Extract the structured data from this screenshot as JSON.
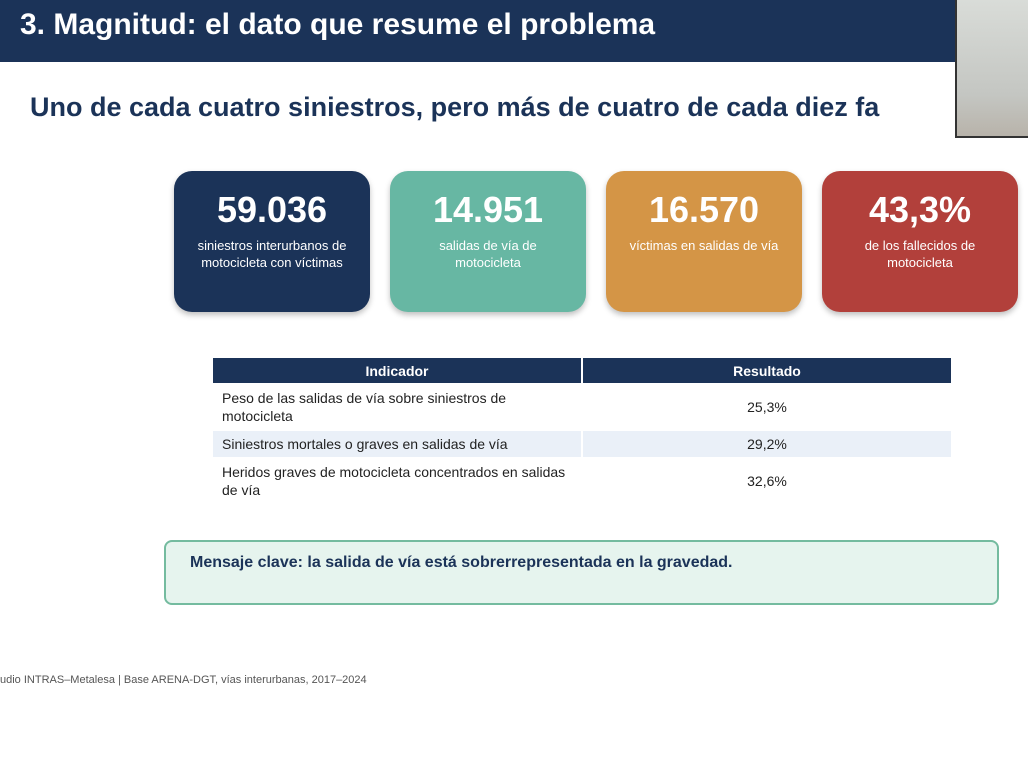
{
  "header": {
    "title": "3. Magnitud: el dato que resume el problema"
  },
  "subtitle": "Uno de cada cuatro siniestros, pero más de cuatro de cada diez fa",
  "cards": [
    {
      "value": "59.036",
      "label": "siniestros interurbanos de motocicleta con víctimas"
    },
    {
      "value": "14.951",
      "label": "salidas de vía de motocicleta"
    },
    {
      "value": "16.570",
      "label": "víctimas en salidas de vía"
    },
    {
      "value": "43,3%",
      "label": "de los fallecidos de motocicleta"
    }
  ],
  "table": {
    "header": [
      "Indicador",
      "Resultado"
    ],
    "rows": [
      [
        "Peso de las salidas de vía sobre siniestros de motocicleta",
        "25,3%"
      ],
      [
        "Siniestros mortales o graves en salidas de vía",
        "29,2%"
      ],
      [
        "Heridos graves de motocicleta concentrados en salidas de vía",
        "32,6%"
      ]
    ]
  },
  "message": "Mensaje clave: la salida de vía está sobrerrepresentada en la gravedad.",
  "footer": "udio INTRAS–Metalesa | Base ARENA-DGT, vías interurbanas, 2017–2024"
}
